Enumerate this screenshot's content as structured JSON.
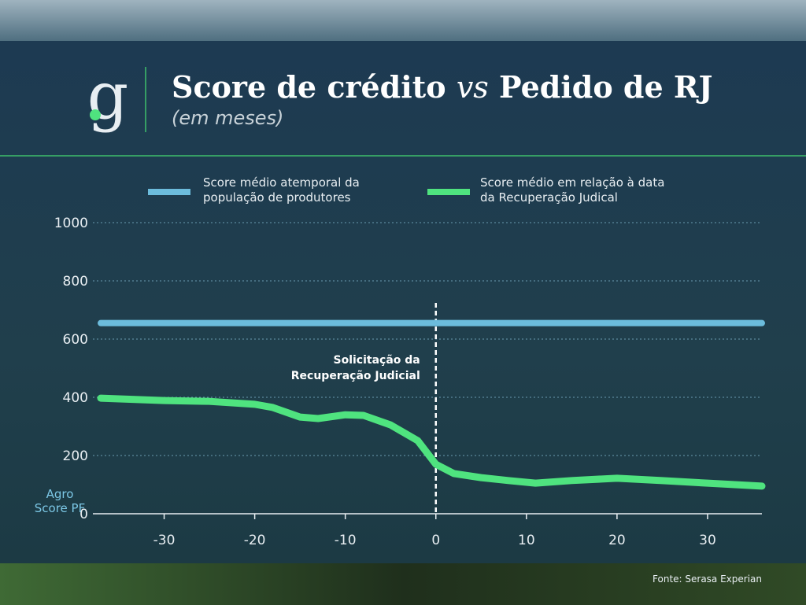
{
  "logo": "g",
  "chart_data": {
    "type": "line",
    "title": {
      "before": "Score de crédito",
      "vs": "vs",
      "after": "Pedido de RJ"
    },
    "subtitle": "(em meses)",
    "ylabel": [
      "Agro",
      "Score PF"
    ],
    "annotation": {
      "lines": [
        "Solicitação da",
        "Recuperação Judicial"
      ],
      "x": 0
    },
    "source": "Fonte: Serasa Experian",
    "xlim": [
      -37,
      36
    ],
    "xticks": [
      -30,
      -20,
      -10,
      0,
      10,
      20,
      30
    ],
    "ylim": [
      0,
      1000
    ],
    "yticks": [
      0,
      200,
      400,
      600,
      800,
      1000
    ],
    "grid": true,
    "series": [
      {
        "name": "Score médio atemporal da população de produtores",
        "color": "#6cbcdc",
        "x": [
          -37,
          36
        ],
        "values": [
          655,
          655
        ]
      },
      {
        "name": "Score médio em relação à data da Recuperação Judical",
        "color": "#4fe37f",
        "x": [
          -37,
          -30,
          -25,
          -20,
          -18,
          -15,
          -13,
          -10,
          -8,
          -5,
          -2,
          0,
          2,
          5,
          8,
          11,
          15,
          20,
          25,
          30,
          36
        ],
        "values": [
          397,
          389,
          386,
          376,
          365,
          332,
          327,
          340,
          338,
          305,
          251,
          170,
          138,
          124,
          114,
          105,
          114,
          122,
          114,
          105,
          95
        ]
      }
    ]
  }
}
